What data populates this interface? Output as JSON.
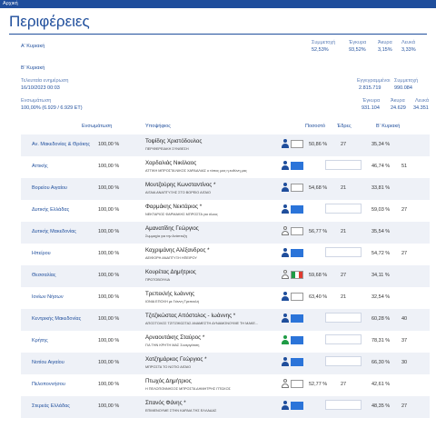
{
  "topbar": {
    "breadcrumb": "Αρχική"
  },
  "page": {
    "title": "Περιφέρειες"
  },
  "round_a": {
    "label": "Α' Κυριακή",
    "turnout_label": "Συμμετοχή",
    "turnout": "52,53%",
    "valid_label": "Έγκυρα",
    "valid": "93,52%",
    "invalid_label": "Άκυρα",
    "invalid": "3,15%",
    "blank_label": "Λευκά",
    "blank": "3,33%"
  },
  "round_b": {
    "label": "Β' Κυριακή",
    "updated_label": "Τελευταία ενημέρωση",
    "updated": "16/10/2023 00:03",
    "integration_label": "Ενσωμάτωση",
    "integration": "100,00% (6.929 / 6.929 ΕΤ)",
    "registered_label": "Εγγεγραμμένοι",
    "registered": "2.815.719",
    "turnout_label": "Συμμετοχή",
    "turnout": "990.084",
    "valid_label": "Έγκυρα",
    "valid": "931.104",
    "invalid_label": "Άκυρα",
    "invalid": "24.629",
    "blank_label": "Λευκά",
    "blank": "34.351"
  },
  "table": {
    "headers": {
      "integration": "Ενσωμάτωση",
      "candidate": "Υποψήφιος",
      "share": "Ποσοστό",
      "seats": "Έδρες",
      "round_b": "Β' Κυριακή"
    },
    "rows": [
      {
        "region": "Αν. Μακεδονίας & Θράκης",
        "pct": "100,00 %",
        "name": "Τοψίδης Χριστόδουλος",
        "party": "ΠΕΡΙΦΕΡΕΙΑΚΗ ΣΥΝΘΕΣΗ",
        "person": "blue",
        "box": "outline",
        "share": "50,86 %",
        "seats": "27",
        "b2": "35,34 %",
        "b2seats": ""
      },
      {
        "region": "Αττικής",
        "pct": "100,00 %",
        "name": "Χαρδαλιάς Νικόλαος",
        "party": "ΑΤΤΙΚΗ ΜΠΡΟΣΤΑ ΝΙΚΟΣ ΧΑΡΔΑΛΙΑΣ ο τόπος μας η ευθύνη μας",
        "person": "blue",
        "box": "blue",
        "share": "",
        "seats": "",
        "b2": "46,74 %",
        "b2seats": "51"
      },
      {
        "region": "Βορείου Αιγαίου",
        "pct": "100,00 %",
        "name": "Μουτζούρης Κωνσταντίνος *",
        "party": "ΑΙΓΑΙΑ ΑΝΑΠΤΥΞΗΣ ΣΤΟ ΒΟΡΕΙΟ ΑΙΓΑΙΟ",
        "person": "blue",
        "box": "outline",
        "share": "54,68 %",
        "seats": "21",
        "b2": "33,81 %",
        "b2seats": ""
      },
      {
        "region": "Δυτικής Ελλάδας",
        "pct": "100,00 %",
        "name": "Φαρμάκης Νεκτάριος *",
        "party": "ΝΕΚΤΑΡΙΟΣ ΦΑΡΜΑΚΗΣ ΜΠΡΟΣΤΑ για όλους",
        "person": "blue",
        "box": "blue",
        "share": "",
        "seats": "",
        "b2": "59,03 %",
        "b2seats": "27"
      },
      {
        "region": "Δυτικής Μακεδονίας",
        "pct": "100,00 %",
        "name": "Αμανατίδης Γεώργιος",
        "party": "Συμμαχία για την Ανάπτυξη",
        "person": "grey",
        "box": "outline",
        "share": "56,77 %",
        "seats": "21",
        "b2": "35,54 %",
        "b2seats": ""
      },
      {
        "region": "Ηπείρου",
        "pct": "100,00 %",
        "name": "Καχριμάνης Αλέξανδρος *",
        "party": "ΑΕΙΦΟΡΗ ΑΝΑΠΤΥΞΗ ΗΠΕΙΡΟΥ",
        "person": "blue",
        "box": "blue",
        "share": "",
        "seats": "",
        "b2": "54,72 %",
        "b2seats": "27"
      },
      {
        "region": "Θεσσαλίας",
        "pct": "100,00 %",
        "name": "Κουρέτας Δημήτριος",
        "party": "ΠΡΩΤΟΒΟΥΛΙΑ",
        "person": "grey",
        "box": "flag",
        "share": "59,68 %",
        "seats": "27",
        "b2": "34,11 %",
        "b2seats": ""
      },
      {
        "region": "Ιονίων Νήσων",
        "pct": "100,00 %",
        "name": "Τρεπεκλής Ιωάννης",
        "party": "ΙΟΝΙΑ ΕΠΟΧΗ με Γιάννη Τρεπεκλή",
        "person": "blue",
        "box": "outline",
        "share": "63,40 %",
        "seats": "21",
        "b2": "32,54 %",
        "b2seats": ""
      },
      {
        "region": "Κεντρικής Μακεδονίας",
        "pct": "100,00 %",
        "name": "Τζιτζικώστας Απόστολος - Ιωάννης *",
        "party": "ΑΠΟΣΤΟΛΟΣ ΤΖΙΤΖΙΚΩΣΤΑΣ ΑΝΑΜΕΣΤΗ ΔΥΝΑΜΟΝΟΥΜΕ ΤΗ ΜΑΚΕ...",
        "person": "blue",
        "box": "blue",
        "share": "",
        "seats": "",
        "b2": "60,28 %",
        "b2seats": "40"
      },
      {
        "region": "Κρήτης",
        "pct": "100,00 %",
        "name": "Αρναουτάκης Σταύρος *",
        "party": "ΓΙΑ ΤΗΝ ΚΡΗΤΗ ΜΑΣ Συνεργάτιση",
        "person": "green",
        "box": "blue",
        "share": "",
        "seats": "",
        "b2": "78,31 %",
        "b2seats": "37"
      },
      {
        "region": "Νοτίου Αιγαίου",
        "pct": "100,00 %",
        "name": "Χατζημάρκος Γεώργιος *",
        "party": "ΜΠΡΟΣΤΑ ΤΟ ΝΟΤΙΟ ΑΙΓΑΙΟ",
        "person": "blue",
        "box": "blue",
        "share": "",
        "seats": "",
        "b2": "66,30 %",
        "b2seats": "30"
      },
      {
        "region": "Πελοποννήσου",
        "pct": "100,00 %",
        "name": "Πτωχός Δημήτριος",
        "party": "Η ΠΕΛΟΠΟΝΝΗΣΟΣ ΜΠΡΟΣΤΑ ΔΗΜΗΤΡΗΣ ΠΤΩΧΟΣ",
        "person": "grey",
        "box": "outline",
        "share": "52,77 %",
        "seats": "27",
        "b2": "42,61 %",
        "b2seats": ""
      },
      {
        "region": "Στερεάς Ελλάδας",
        "pct": "100,00 %",
        "name": "Σπανός Φάνης *",
        "party": "ΕΠΙΜΕΝΟΥΜΕ ΣΤΗΝ ΚΑΡΔΙΑ ΤΗΣ ΕΛΛΑΔΑΣ",
        "person": "blue",
        "box": "blue",
        "share": "",
        "seats": "",
        "b2": "48,35 %",
        "b2seats": "27"
      }
    ]
  }
}
